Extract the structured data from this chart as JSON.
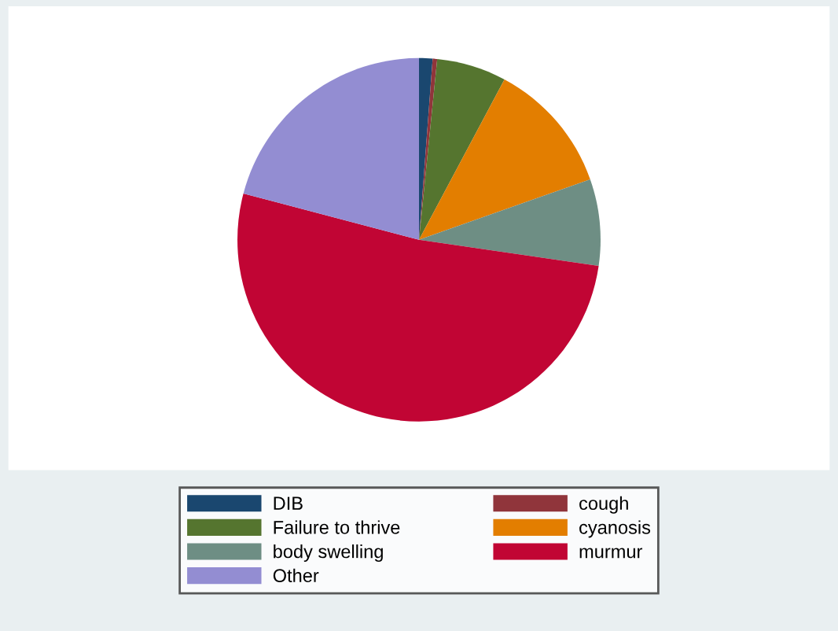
{
  "chart_data": {
    "type": "pie",
    "categories": [
      "DIB",
      "cough",
      "Failure to thrive",
      "cyanosis",
      "body swelling",
      "murmur",
      "Other"
    ],
    "values": [
      1.2,
      0.4,
      6.2,
      11.8,
      7.7,
      51.8,
      20.9
    ],
    "colors": [
      "#1a476f",
      "#90353b",
      "#55752f",
      "#e37e00",
      "#6e8e84",
      "#c10534",
      "#938dd2"
    ],
    "legend": "bottom"
  }
}
